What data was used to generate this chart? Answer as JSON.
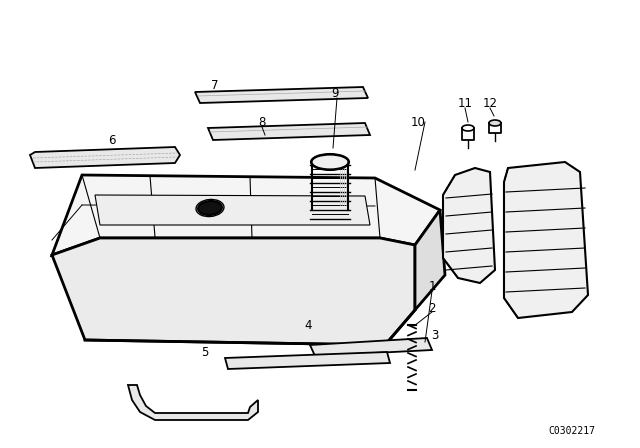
{
  "background_color": "#ffffff",
  "line_color": "#000000",
  "watermark": "C0302217",
  "figsize": [
    6.4,
    4.48
  ],
  "dpi": 100
}
